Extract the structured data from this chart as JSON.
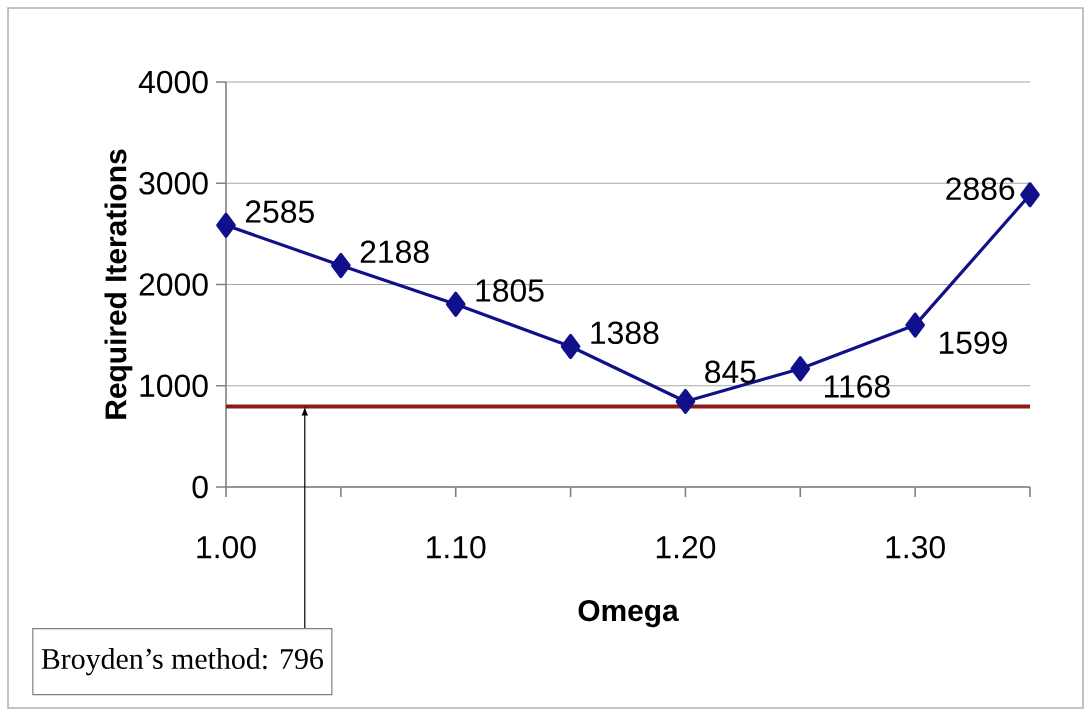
{
  "chart_data": {
    "type": "line",
    "xlabel": "Omega",
    "ylabel": "Required Iterations",
    "x": [
      1.0,
      1.05,
      1.1,
      1.15,
      1.2,
      1.25,
      1.3,
      1.35
    ],
    "series": [
      {
        "color": "#10108a",
        "values": [
          2585,
          2188,
          1805,
          1388,
          845,
          1168,
          1599,
          2886
        ]
      }
    ],
    "xlim": [
      1.0,
      1.35
    ],
    "xticks": [
      {
        "value": 1.0,
        "label": "1.00"
      },
      {
        "value": 1.05,
        "label": null
      },
      {
        "value": 1.1,
        "label": "1.10"
      },
      {
        "value": 1.15,
        "label": null
      },
      {
        "value": 1.2,
        "label": "1.20"
      },
      {
        "value": 1.25,
        "label": null
      },
      {
        "value": 1.3,
        "label": "1.30"
      },
      {
        "value": 1.35,
        "label": null
      }
    ],
    "ylim": [
      0,
      4000
    ],
    "yticks": [
      0,
      1000,
      2000,
      3000,
      4000
    ],
    "grid": "y",
    "marker": "diamond",
    "line_style": "solid",
    "data_labels": true,
    "ref_lines": [
      {
        "axis": "y",
        "value": 796,
        "label": "Broyden’s method: 796",
        "color": "#8b1a1a"
      }
    ]
  }
}
